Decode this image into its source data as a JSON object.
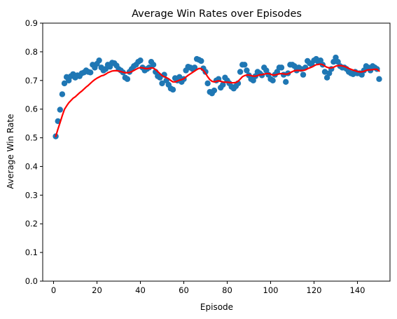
{
  "chart_data": {
    "type": "scatter",
    "title": "Average Win Rates over Episodes",
    "xlabel": "Episode",
    "ylabel": "Average Win Rate",
    "xlim": [
      -5,
      155
    ],
    "ylim": [
      0.0,
      0.9
    ],
    "xticks": [
      "0",
      "20",
      "40",
      "60",
      "80",
      "100",
      "120",
      "140"
    ],
    "yticks": [
      "0.0",
      "0.1",
      "0.2",
      "0.3",
      "0.4",
      "0.5",
      "0.6",
      "0.7",
      "0.8",
      "0.9"
    ],
    "grid": false,
    "series": [
      {
        "kind": "scatter",
        "color": "#1f77b4",
        "x": [
          1,
          2,
          3,
          4,
          5,
          6,
          7,
          8,
          9,
          10,
          11,
          12,
          13,
          14,
          15,
          16,
          17,
          18,
          19,
          20,
          21,
          22,
          23,
          24,
          25,
          26,
          27,
          28,
          29,
          30,
          31,
          32,
          33,
          34,
          35,
          36,
          37,
          38,
          39,
          40,
          41,
          42,
          43,
          44,
          45,
          46,
          47,
          48,
          49,
          50,
          51,
          52,
          53,
          54,
          55,
          56,
          57,
          58,
          59,
          60,
          61,
          62,
          63,
          64,
          65,
          66,
          67,
          68,
          69,
          70,
          71,
          72,
          73,
          74,
          75,
          76,
          77,
          78,
          79,
          80,
          81,
          82,
          83,
          84,
          85,
          86,
          87,
          88,
          89,
          90,
          91,
          92,
          93,
          94,
          95,
          96,
          97,
          98,
          99,
          100,
          101,
          102,
          103,
          104,
          105,
          106,
          107,
          108,
          109,
          110,
          111,
          112,
          113,
          114,
          115,
          116,
          117,
          118,
          119,
          120,
          121,
          122,
          123,
          124,
          125,
          126,
          127,
          128,
          129,
          130,
          131,
          132,
          133,
          134,
          135,
          136,
          137,
          138,
          139,
          140,
          141,
          142,
          143,
          144,
          145,
          146,
          147,
          148,
          149,
          150
        ],
        "y": [
          0.505,
          0.558,
          0.598,
          0.652,
          0.69,
          0.712,
          0.7,
          0.715,
          0.722,
          0.71,
          0.718,
          0.715,
          0.725,
          0.728,
          0.735,
          0.73,
          0.728,
          0.755,
          0.745,
          0.758,
          0.77,
          0.745,
          0.735,
          0.74,
          0.755,
          0.748,
          0.762,
          0.76,
          0.752,
          0.74,
          0.735,
          0.728,
          0.71,
          0.705,
          0.73,
          0.74,
          0.75,
          0.755,
          0.765,
          0.77,
          0.745,
          0.735,
          0.74,
          0.745,
          0.765,
          0.755,
          0.73,
          0.715,
          0.71,
          0.69,
          0.72,
          0.7,
          0.685,
          0.672,
          0.668,
          0.708,
          0.7,
          0.712,
          0.695,
          0.705,
          0.735,
          0.748,
          0.745,
          0.74,
          0.745,
          0.775,
          0.772,
          0.768,
          0.742,
          0.73,
          0.69,
          0.66,
          0.655,
          0.665,
          0.7,
          0.705,
          0.675,
          0.685,
          0.71,
          0.7,
          0.69,
          0.678,
          0.672,
          0.68,
          0.69,
          0.73,
          0.755,
          0.755,
          0.735,
          0.718,
          0.705,
          0.7,
          0.715,
          0.73,
          0.725,
          0.718,
          0.745,
          0.735,
          0.72,
          0.705,
          0.7,
          0.72,
          0.73,
          0.745,
          0.745,
          0.72,
          0.695,
          0.725,
          0.755,
          0.755,
          0.75,
          0.735,
          0.745,
          0.74,
          0.72,
          0.745,
          0.768,
          0.76,
          0.755,
          0.77,
          0.775,
          0.765,
          0.77,
          0.755,
          0.73,
          0.71,
          0.725,
          0.74,
          0.765,
          0.78,
          0.765,
          0.75,
          0.745,
          0.745,
          0.74,
          0.73,
          0.725,
          0.722,
          0.73,
          0.725,
          0.725,
          0.72,
          0.735,
          0.75,
          0.745,
          0.735,
          0.75,
          0.745,
          0.74,
          0.705
        ]
      },
      {
        "kind": "line",
        "color": "#ff0000",
        "x": [
          1,
          2,
          3,
          4,
          5,
          6,
          7,
          8,
          9,
          10,
          11,
          12,
          13,
          14,
          15,
          16,
          17,
          18,
          19,
          20,
          21,
          22,
          23,
          24,
          25,
          26,
          27,
          28,
          29,
          30,
          31,
          32,
          33,
          34,
          35,
          36,
          37,
          38,
          39,
          40,
          41,
          42,
          43,
          44,
          45,
          46,
          47,
          48,
          49,
          50,
          51,
          52,
          53,
          54,
          55,
          56,
          57,
          58,
          59,
          60,
          61,
          62,
          63,
          64,
          65,
          66,
          67,
          68,
          69,
          70,
          71,
          72,
          73,
          74,
          75,
          76,
          77,
          78,
          79,
          80,
          81,
          82,
          83,
          84,
          85,
          86,
          87,
          88,
          89,
          90,
          91,
          92,
          93,
          94,
          95,
          96,
          97,
          98,
          99,
          100,
          101,
          102,
          103,
          104,
          105,
          106,
          107,
          108,
          109,
          110,
          111,
          112,
          113,
          114,
          115,
          116,
          117,
          118,
          119,
          120,
          121,
          122,
          123,
          124,
          125,
          126,
          127,
          128,
          129,
          130,
          131,
          132,
          133,
          134,
          135,
          136,
          137,
          138,
          139,
          140,
          141,
          142,
          143,
          144,
          145,
          146,
          147,
          148,
          149,
          150
        ],
        "y": [
          0.505,
          0.53,
          0.553,
          0.577,
          0.599,
          0.611,
          0.622,
          0.63,
          0.638,
          0.643,
          0.65,
          0.657,
          0.663,
          0.67,
          0.677,
          0.683,
          0.69,
          0.697,
          0.703,
          0.708,
          0.712,
          0.716,
          0.718,
          0.722,
          0.727,
          0.73,
          0.733,
          0.734,
          0.734,
          0.733,
          0.731,
          0.729,
          0.727,
          0.727,
          0.728,
          0.731,
          0.735,
          0.739,
          0.743,
          0.745,
          0.744,
          0.742,
          0.741,
          0.742,
          0.744,
          0.743,
          0.738,
          0.731,
          0.724,
          0.717,
          0.713,
          0.71,
          0.706,
          0.7,
          0.695,
          0.695,
          0.698,
          0.701,
          0.703,
          0.706,
          0.712,
          0.718,
          0.723,
          0.728,
          0.733,
          0.738,
          0.742,
          0.741,
          0.735,
          0.725,
          0.713,
          0.703,
          0.697,
          0.695,
          0.697,
          0.699,
          0.697,
          0.695,
          0.694,
          0.694,
          0.693,
          0.692,
          0.692,
          0.693,
          0.697,
          0.705,
          0.713,
          0.717,
          0.719,
          0.719,
          0.717,
          0.715,
          0.715,
          0.717,
          0.72,
          0.72,
          0.722,
          0.724,
          0.724,
          0.722,
          0.719,
          0.719,
          0.721,
          0.723,
          0.724,
          0.723,
          0.722,
          0.723,
          0.727,
          0.731,
          0.734,
          0.735,
          0.735,
          0.735,
          0.735,
          0.737,
          0.741,
          0.744,
          0.747,
          0.751,
          0.755,
          0.756,
          0.757,
          0.755,
          0.75,
          0.746,
          0.744,
          0.744,
          0.746,
          0.75,
          0.752,
          0.752,
          0.751,
          0.749,
          0.746,
          0.742,
          0.739,
          0.736,
          0.734,
          0.731,
          0.73,
          0.73,
          0.732,
          0.735,
          0.737,
          0.737,
          0.738,
          0.739,
          0.739,
          0.733
        ]
      }
    ]
  }
}
